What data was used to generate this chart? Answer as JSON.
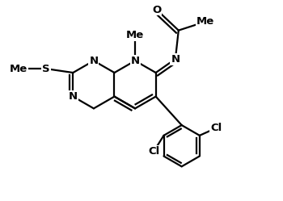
{
  "background": "#ffffff",
  "lc": "#000000",
  "lw": 1.6,
  "fs": 9.5,
  "xlim": [
    0,
    7.0
  ],
  "ylim": [
    0,
    5.0
  ],
  "r": 0.6
}
